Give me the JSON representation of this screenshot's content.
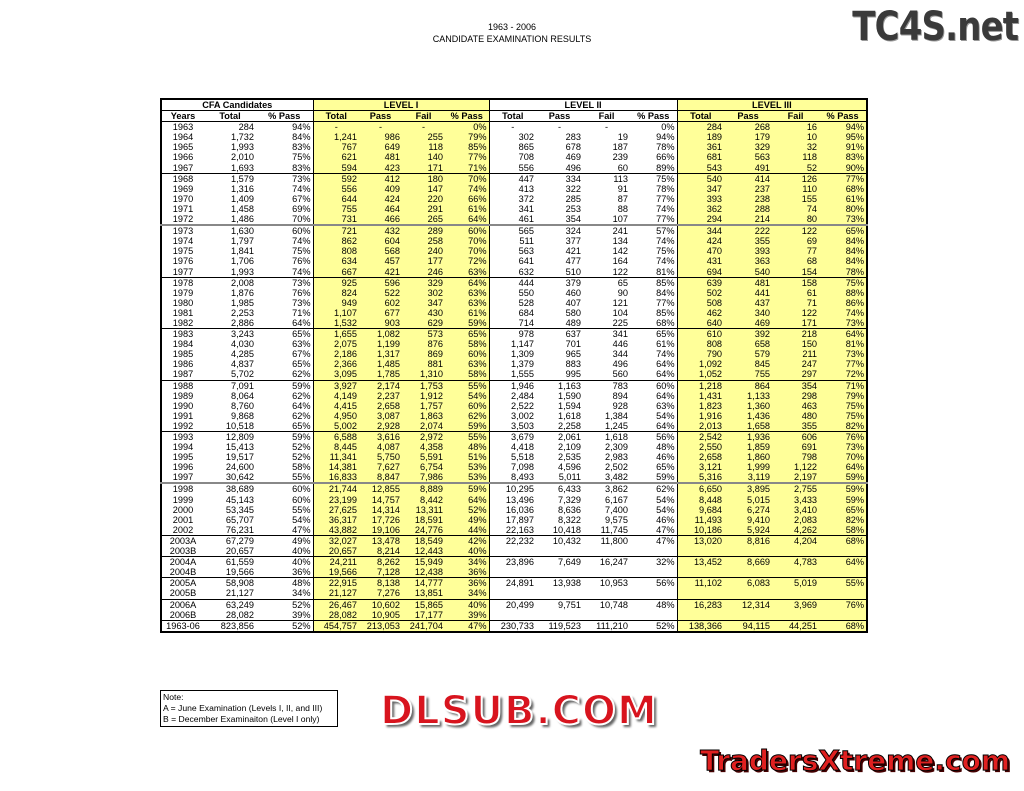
{
  "title_line1": "1963 - 2006",
  "title_line2": "CANDIDATE EXAMINATION RESULTS",
  "watermarks": {
    "top": "TC4S.net",
    "middle": "DLSUB.COM",
    "bottom": "TradersXtreme.com"
  },
  "colors": {
    "level_highlight": "#ffff99"
  },
  "groups": [
    "CFA Candidates",
    "LEVEL I",
    "LEVEL II",
    "LEVEL III"
  ],
  "columns": [
    "Years",
    "Total",
    "% Pass",
    "Total",
    "Pass",
    "Fail",
    "% Pass",
    "Total",
    "Pass",
    "Fail",
    "% Pass",
    "Total",
    "Pass",
    "Fail",
    "% Pass"
  ],
  "rows": [
    [
      "1963",
      "284",
      "94%",
      "-",
      "-",
      "-",
      "0%",
      "-",
      "-",
      "-",
      "0%",
      "284",
      "268",
      "16",
      "94%"
    ],
    [
      "1964",
      "1,732",
      "84%",
      "1,241",
      "986",
      "255",
      "79%",
      "302",
      "283",
      "19",
      "94%",
      "189",
      "179",
      "10",
      "95%"
    ],
    [
      "1965",
      "1,993",
      "83%",
      "767",
      "649",
      "118",
      "85%",
      "865",
      "678",
      "187",
      "78%",
      "361",
      "329",
      "32",
      "91%"
    ],
    [
      "1966",
      "2,010",
      "75%",
      "621",
      "481",
      "140",
      "77%",
      "708",
      "469",
      "239",
      "66%",
      "681",
      "563",
      "118",
      "83%"
    ],
    [
      "1967",
      "1,693",
      "83%",
      "594",
      "423",
      "171",
      "71%",
      "556",
      "496",
      "60",
      "89%",
      "543",
      "491",
      "52",
      "90%"
    ],
    [
      "1968",
      "1,579",
      "73%",
      "592",
      "412",
      "180",
      "70%",
      "447",
      "334",
      "113",
      "75%",
      "540",
      "414",
      "126",
      "77%"
    ],
    [
      "1969",
      "1,316",
      "74%",
      "556",
      "409",
      "147",
      "74%",
      "413",
      "322",
      "91",
      "78%",
      "347",
      "237",
      "110",
      "68%"
    ],
    [
      "1970",
      "1,409",
      "67%",
      "644",
      "424",
      "220",
      "66%",
      "372",
      "285",
      "87",
      "77%",
      "393",
      "238",
      "155",
      "61%"
    ],
    [
      "1971",
      "1,458",
      "69%",
      "755",
      "464",
      "291",
      "61%",
      "341",
      "253",
      "88",
      "74%",
      "362",
      "288",
      "74",
      "80%"
    ],
    [
      "1972",
      "1,486",
      "70%",
      "731",
      "466",
      "265",
      "64%",
      "461",
      "354",
      "107",
      "77%",
      "294",
      "214",
      "80",
      "73%"
    ],
    [
      "1973",
      "1,630",
      "60%",
      "721",
      "432",
      "289",
      "60%",
      "565",
      "324",
      "241",
      "57%",
      "344",
      "222",
      "122",
      "65%"
    ],
    [
      "1974",
      "1,797",
      "74%",
      "862",
      "604",
      "258",
      "70%",
      "511",
      "377",
      "134",
      "74%",
      "424",
      "355",
      "69",
      "84%"
    ],
    [
      "1975",
      "1,841",
      "75%",
      "808",
      "568",
      "240",
      "70%",
      "563",
      "421",
      "142",
      "75%",
      "470",
      "393",
      "77",
      "84%"
    ],
    [
      "1976",
      "1,706",
      "76%",
      "634",
      "457",
      "177",
      "72%",
      "641",
      "477",
      "164",
      "74%",
      "431",
      "363",
      "68",
      "84%"
    ],
    [
      "1977",
      "1,993",
      "74%",
      "667",
      "421",
      "246",
      "63%",
      "632",
      "510",
      "122",
      "81%",
      "694",
      "540",
      "154",
      "78%"
    ],
    [
      "1978",
      "2,008",
      "73%",
      "925",
      "596",
      "329",
      "64%",
      "444",
      "379",
      "65",
      "85%",
      "639",
      "481",
      "158",
      "75%"
    ],
    [
      "1979",
      "1,876",
      "76%",
      "824",
      "522",
      "302",
      "63%",
      "550",
      "460",
      "90",
      "84%",
      "502",
      "441",
      "61",
      "88%"
    ],
    [
      "1980",
      "1,985",
      "73%",
      "949",
      "602",
      "347",
      "63%",
      "528",
      "407",
      "121",
      "77%",
      "508",
      "437",
      "71",
      "86%"
    ],
    [
      "1981",
      "2,253",
      "71%",
      "1,107",
      "677",
      "430",
      "61%",
      "684",
      "580",
      "104",
      "85%",
      "462",
      "340",
      "122",
      "74%"
    ],
    [
      "1982",
      "2,886",
      "64%",
      "1,532",
      "903",
      "629",
      "59%",
      "714",
      "489",
      "225",
      "68%",
      "640",
      "469",
      "171",
      "73%"
    ],
    [
      "1983",
      "3,243",
      "65%",
      "1,655",
      "1,082",
      "573",
      "65%",
      "978",
      "637",
      "341",
      "65%",
      "610",
      "392",
      "218",
      "64%"
    ],
    [
      "1984",
      "4,030",
      "63%",
      "2,075",
      "1,199",
      "876",
      "58%",
      "1,147",
      "701",
      "446",
      "61%",
      "808",
      "658",
      "150",
      "81%"
    ],
    [
      "1985",
      "4,285",
      "67%",
      "2,186",
      "1,317",
      "869",
      "60%",
      "1,309",
      "965",
      "344",
      "74%",
      "790",
      "579",
      "211",
      "73%"
    ],
    [
      "1986",
      "4,837",
      "65%",
      "2,366",
      "1,485",
      "881",
      "63%",
      "1,379",
      "883",
      "496",
      "64%",
      "1,092",
      "845",
      "247",
      "77%"
    ],
    [
      "1987",
      "5,702",
      "62%",
      "3,095",
      "1,785",
      "1,310",
      "58%",
      "1,555",
      "995",
      "560",
      "64%",
      "1,052",
      "755",
      "297",
      "72%"
    ],
    [
      "1988",
      "7,091",
      "59%",
      "3,927",
      "2,174",
      "1,753",
      "55%",
      "1,946",
      "1,163",
      "783",
      "60%",
      "1,218",
      "864",
      "354",
      "71%"
    ],
    [
      "1989",
      "8,064",
      "62%",
      "4,149",
      "2,237",
      "1,912",
      "54%",
      "2,484",
      "1,590",
      "894",
      "64%",
      "1,431",
      "1,133",
      "298",
      "79%"
    ],
    [
      "1990",
      "8,760",
      "64%",
      "4,415",
      "2,658",
      "1,757",
      "60%",
      "2,522",
      "1,594",
      "928",
      "63%",
      "1,823",
      "1,360",
      "463",
      "75%"
    ],
    [
      "1991",
      "9,868",
      "62%",
      "4,950",
      "3,087",
      "1,863",
      "62%",
      "3,002",
      "1,618",
      "1,384",
      "54%",
      "1,916",
      "1,436",
      "480",
      "75%"
    ],
    [
      "1992",
      "10,518",
      "65%",
      "5,002",
      "2,928",
      "2,074",
      "59%",
      "3,503",
      "2,258",
      "1,245",
      "64%",
      "2,013",
      "1,658",
      "355",
      "82%"
    ],
    [
      "1993",
      "12,809",
      "59%",
      "6,588",
      "3,616",
      "2,972",
      "55%",
      "3,679",
      "2,061",
      "1,618",
      "56%",
      "2,542",
      "1,936",
      "606",
      "76%"
    ],
    [
      "1994",
      "15,413",
      "52%",
      "8,445",
      "4,087",
      "4,358",
      "48%",
      "4,418",
      "2,109",
      "2,309",
      "48%",
      "2,550",
      "1,859",
      "691",
      "73%"
    ],
    [
      "1995",
      "19,517",
      "52%",
      "11,341",
      "5,750",
      "5,591",
      "51%",
      "5,518",
      "2,535",
      "2,983",
      "46%",
      "2,658",
      "1,860",
      "798",
      "70%"
    ],
    [
      "1996",
      "24,600",
      "58%",
      "14,381",
      "7,627",
      "6,754",
      "53%",
      "7,098",
      "4,596",
      "2,502",
      "65%",
      "3,121",
      "1,999",
      "1,122",
      "64%"
    ],
    [
      "1997",
      "30,642",
      "55%",
      "16,833",
      "8,847",
      "7,986",
      "53%",
      "8,493",
      "5,011",
      "3,482",
      "59%",
      "5,316",
      "3,119",
      "2,197",
      "59%"
    ],
    [
      "1998",
      "38,689",
      "60%",
      "21,744",
      "12,855",
      "8,889",
      "59%",
      "10,295",
      "6,433",
      "3,862",
      "62%",
      "6,650",
      "3,895",
      "2,755",
      "59%"
    ],
    [
      "1999",
      "45,143",
      "60%",
      "23,199",
      "14,757",
      "8,442",
      "64%",
      "13,496",
      "7,329",
      "6,167",
      "54%",
      "8,448",
      "5,015",
      "3,433",
      "59%"
    ],
    [
      "2000",
      "53,345",
      "55%",
      "27,625",
      "14,314",
      "13,311",
      "52%",
      "16,036",
      "8,636",
      "7,400",
      "54%",
      "9,684",
      "6,274",
      "3,410",
      "65%"
    ],
    [
      "2001",
      "65,707",
      "54%",
      "36,317",
      "17,726",
      "18,591",
      "49%",
      "17,897",
      "8,322",
      "9,575",
      "46%",
      "11,493",
      "9,410",
      "2,083",
      "82%"
    ],
    [
      "2002",
      "76,231",
      "47%",
      "43,882",
      "19,106",
      "24,776",
      "44%",
      "22,163",
      "10,418",
      "11,745",
      "47%",
      "10,186",
      "5,924",
      "4,262",
      "58%"
    ],
    [
      "2003A",
      "67,279",
      "49%",
      "32,027",
      "13,478",
      "18,549",
      "42%",
      "22,232",
      "10,432",
      "11,800",
      "47%",
      "13,020",
      "8,816",
      "4,204",
      "68%"
    ],
    [
      "2003B",
      "20,657",
      "40%",
      "20,657",
      "8,214",
      "12,443",
      "40%",
      "",
      "",
      "",
      "",
      "",
      "",
      "",
      ""
    ],
    [
      "2004A",
      "61,559",
      "40%",
      "24,211",
      "8,262",
      "15,949",
      "34%",
      "23,896",
      "7,649",
      "16,247",
      "32%",
      "13,452",
      "8,669",
      "4,783",
      "64%"
    ],
    [
      "2004B",
      "19,566",
      "36%",
      "19,566",
      "7,128",
      "12,438",
      "36%",
      "",
      "",
      "",
      "",
      "",
      "",
      "",
      ""
    ],
    [
      "2005A",
      "58,908",
      "48%",
      "22,915",
      "8,138",
      "14,777",
      "36%",
      "24,891",
      "13,938",
      "10,953",
      "56%",
      "11,102",
      "6,083",
      "5,019",
      "55%"
    ],
    [
      "2005B",
      "21,127",
      "34%",
      "21,127",
      "7,276",
      "13,851",
      "34%",
      "",
      "",
      "",
      "",
      "",
      "",
      "",
      ""
    ],
    [
      "2006A",
      "63,249",
      "52%",
      "26,467",
      "10,602",
      "15,865",
      "40%",
      "20,499",
      "9,751",
      "10,748",
      "48%",
      "16,283",
      "12,314",
      "3,969",
      "76%"
    ],
    [
      "2006B",
      "28,082",
      "39%",
      "28,082",
      "10,905",
      "17,177",
      "39%",
      "",
      "",
      "",
      "",
      "",
      "",
      "",
      ""
    ],
    [
      "1963-06",
      "823,856",
      "52%",
      "454,757",
      "213,053",
      "241,704",
      "47%",
      "230,733",
      "119,523",
      "111,210",
      "52%",
      "138,366",
      "94,115",
      "44,251",
      "68%"
    ]
  ],
  "note": {
    "title": "Note:",
    "lines": [
      "A = June Examination (Levels I, II, and III)",
      "B = December Examinaiton (Level I only)"
    ]
  }
}
